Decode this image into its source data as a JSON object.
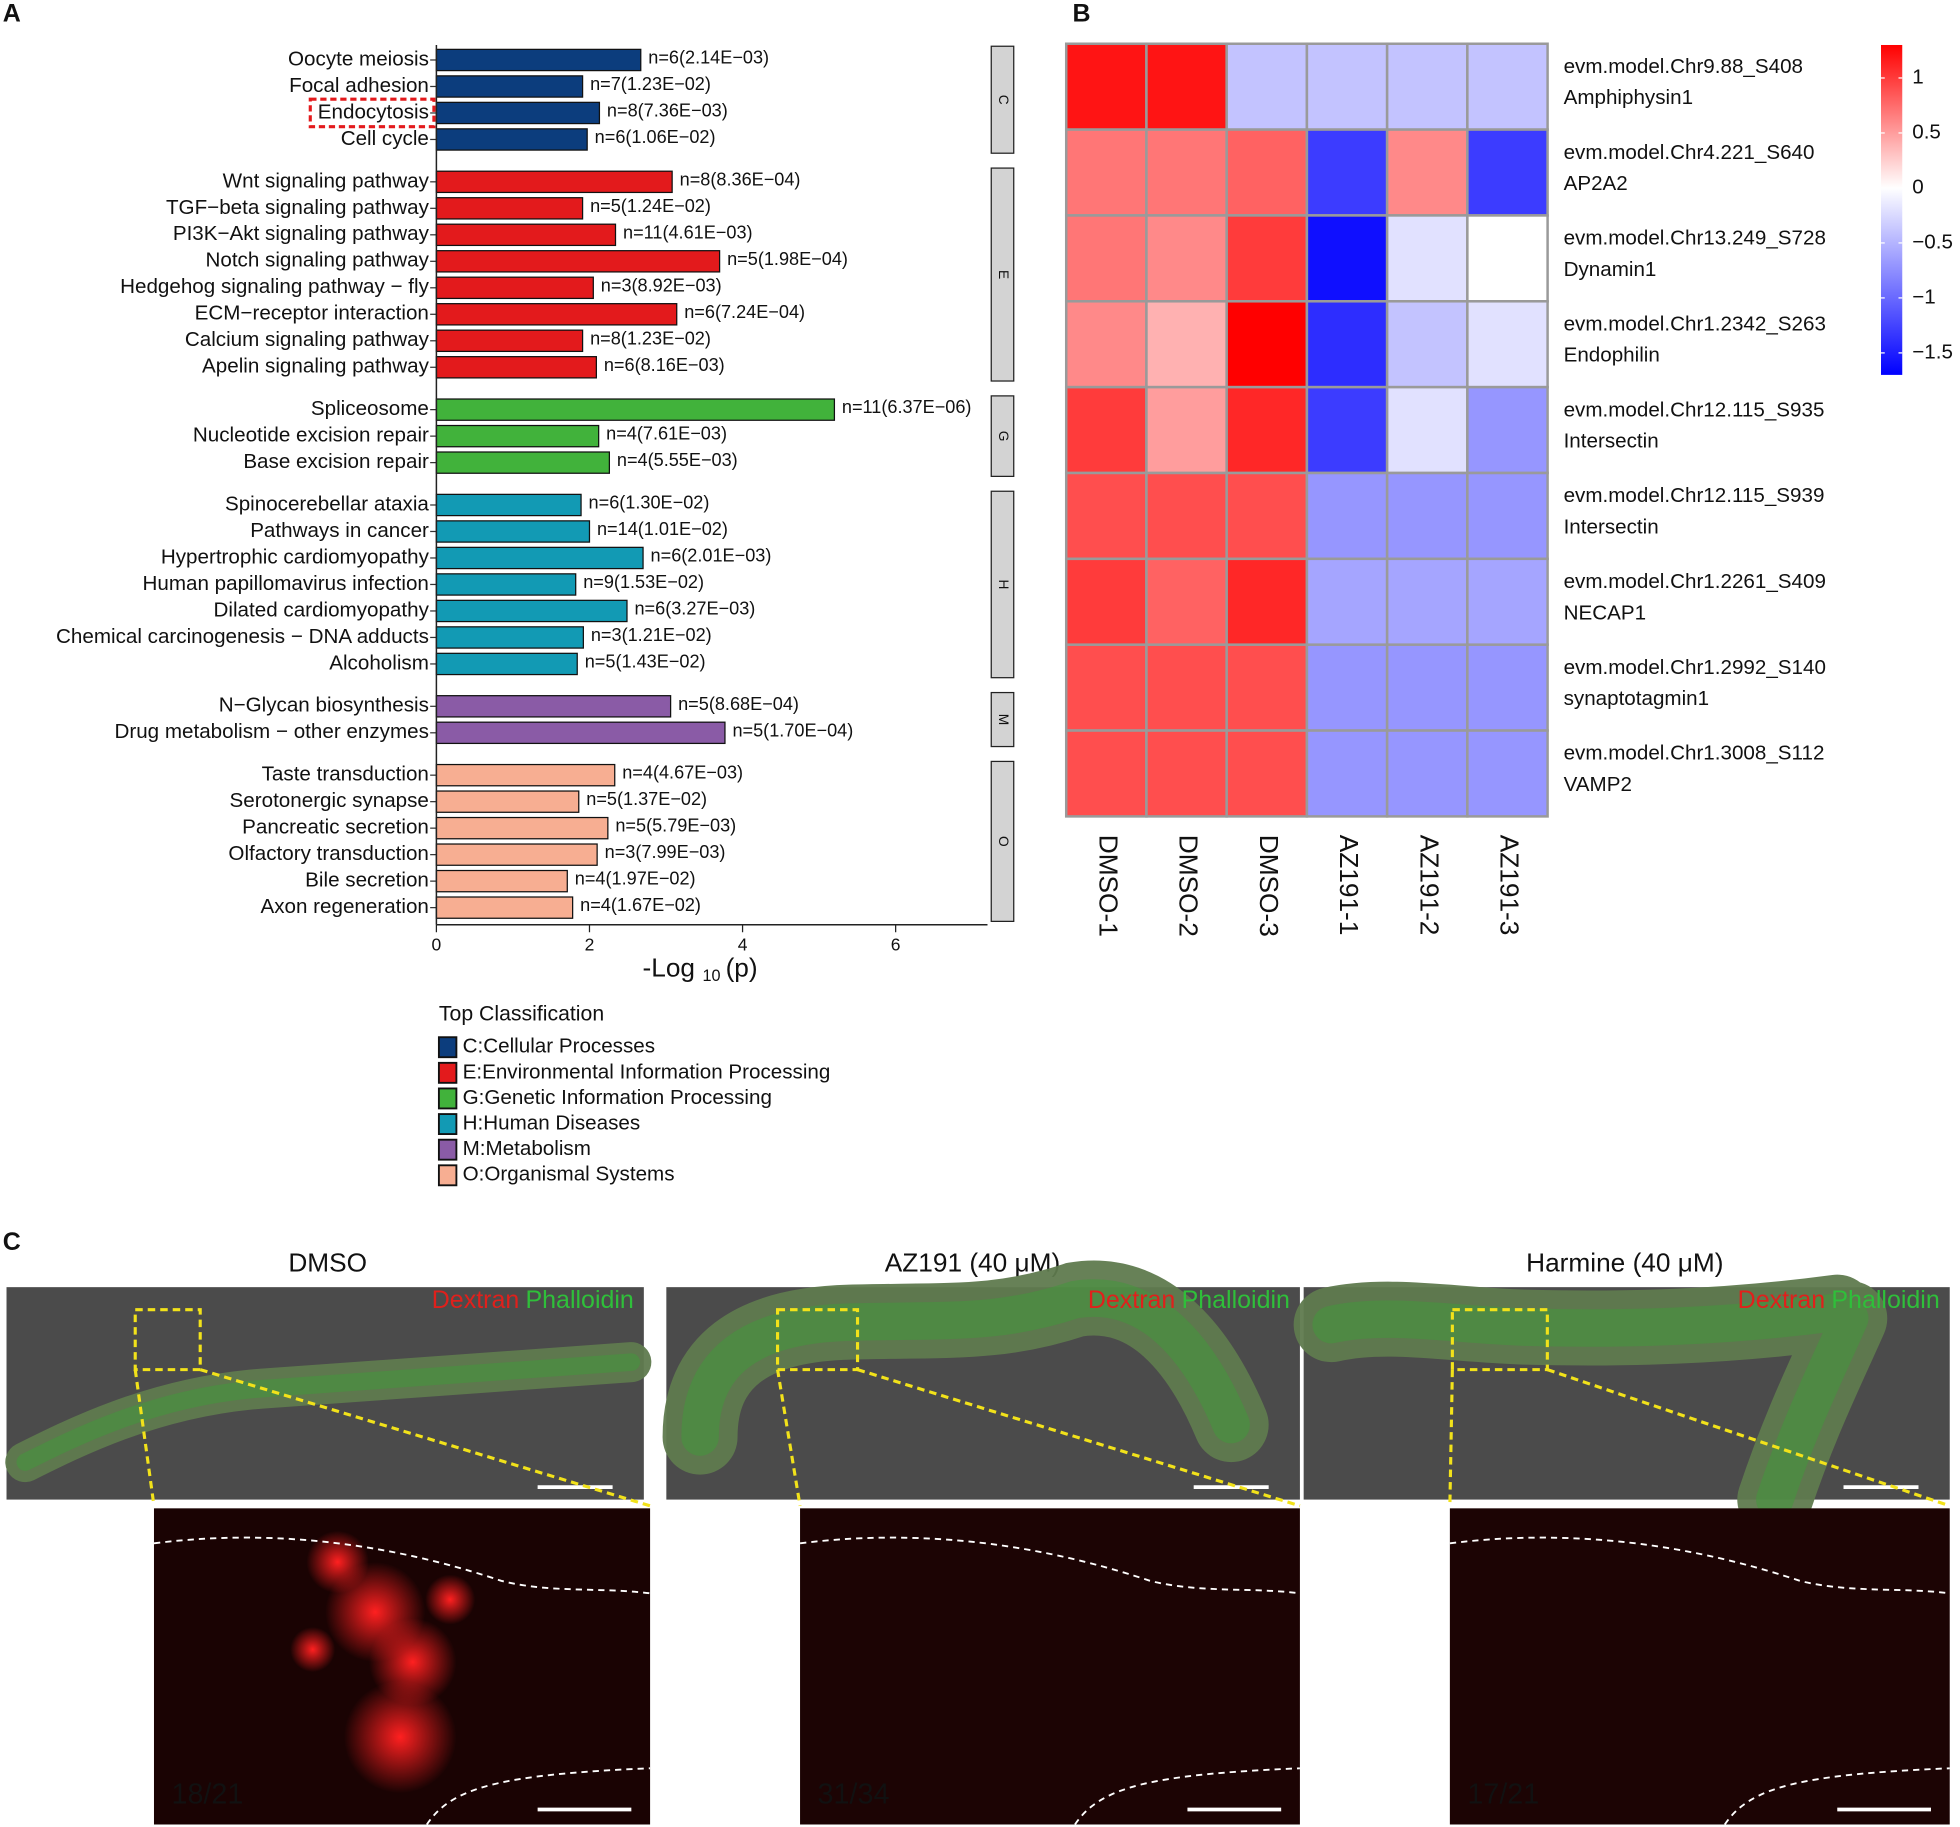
{
  "chart_data": [
    {
      "type": "bar",
      "orientation": "horizontal",
      "panel_label": "A",
      "xlabel": {
        "text": "-Log",
        "subscript": "10",
        "suffix": "(p)"
      },
      "xlim": [
        0,
        7.2
      ],
      "xticks": [
        0,
        2,
        4,
        6
      ],
      "legend_title": "Top Classification",
      "series": [
        {
          "name": "C:Cellular Processes",
          "strip": "C",
          "color": "#0c3d7d",
          "categories": [
            "Oocyte meiosis",
            "Focal adhesion",
            "Endocytosis",
            "Cell cycle"
          ],
          "values": [
            2.67,
            1.91,
            2.13,
            1.97
          ],
          "value_labels": [
            "n=6(2.14E−03)",
            "n=7(1.23E−02)",
            "n=8(7.36E−03)",
            "n=6(1.06E−02)"
          ]
        },
        {
          "name": "E:Environmental Information Processing",
          "strip": "E",
          "color": "#e31a1c",
          "categories": [
            "Wnt signaling pathway",
            "TGF−beta signaling pathway",
            "PI3K−Akt signaling pathway",
            "Notch signaling pathway",
            "Hedgehog signaling pathway − fly",
            "ECM−receptor interaction",
            "Calcium signaling pathway",
            "Apelin signaling pathway"
          ],
          "values": [
            3.08,
            1.91,
            2.34,
            3.7,
            2.05,
            3.14,
            1.91,
            2.09
          ],
          "value_labels": [
            "n=8(8.36E−04)",
            "n=5(1.24E−02)",
            "n=11(4.61E−03)",
            "n=5(1.98E−04)",
            "n=3(8.92E−03)",
            "n=6(7.24E−04)",
            "n=8(1.23E−02)",
            "n=6(8.16E−03)"
          ]
        },
        {
          "name": "G:Genetic Information Processing",
          "strip": "G",
          "color": "#41b23b",
          "categories": [
            "Spliceosome",
            "Nucleotide excision repair",
            "Base excision repair"
          ],
          "values": [
            5.2,
            2.12,
            2.26
          ],
          "value_labels": [
            "n=11(6.37E−06)",
            "n=4(7.61E−03)",
            "n=4(5.55E−03)"
          ]
        },
        {
          "name": "H:Human Diseases",
          "strip": "H",
          "color": "#129ab4",
          "categories": [
            "Spinocerebellar ataxia",
            "Pathways in cancer",
            "Hypertrophic cardiomyopathy",
            "Human papillomavirus infection",
            "Dilated cardiomyopathy",
            "Chemical carcinogenesis − DNA adducts",
            "Alcoholism"
          ],
          "values": [
            1.89,
            2.0,
            2.7,
            1.82,
            2.49,
            1.92,
            1.84
          ],
          "value_labels": [
            "n=6(1.30E−02)",
            "n=14(1.01E−02)",
            "n=6(2.01E−03)",
            "n=9(1.53E−02)",
            "n=6(3.27E−03)",
            "n=3(1.21E−02)",
            "n=5(1.43E−02)"
          ]
        },
        {
          "name": "M:Metabolism",
          "strip": "M",
          "color": "#8a5ba6",
          "categories": [
            "N−Glycan biosynthesis",
            "Drug metabolism − other enzymes"
          ],
          "values": [
            3.06,
            3.77
          ],
          "value_labels": [
            "n=5(8.68E−04)",
            "n=5(1.70E−04)"
          ]
        },
        {
          "name": "O:Organismal Systems",
          "strip": "O",
          "color": "#f7ae92",
          "categories": [
            "Taste transduction",
            "Serotonergic synapse",
            "Pancreatic secretion",
            "Olfactory transduction",
            "Bile secretion",
            "Axon regeneration"
          ],
          "values": [
            2.33,
            1.86,
            2.24,
            2.1,
            1.71,
            1.78
          ],
          "value_labels": [
            "n=4(4.67E−03)",
            "n=5(1.37E−02)",
            "n=5(5.79E−03)",
            "n=3(7.99E−03)",
            "n=4(1.97E−02)",
            "n=4(1.67E−02)"
          ]
        }
      ]
    },
    {
      "type": "heatmap",
      "panel_label": "B",
      "columns": [
        "DMSO-1",
        "DMSO-2",
        "DMSO-3",
        "AZ191-1",
        "AZ191-2",
        "AZ191-3"
      ],
      "rows": [
        {
          "id": "evm.model.Chr9.88_S408",
          "gene": "Amphiphysin1"
        },
        {
          "id": "evm.model.Chr4.221_S640",
          "gene": "AP2A2"
        },
        {
          "id": "evm.model.Chr13.249_S728",
          "gene": "Dynamin1"
        },
        {
          "id": "evm.model.Chr1.2342_S263",
          "gene": "Endophilin"
        },
        {
          "id": "evm.model.Chr12.115_S935",
          "gene": "Intersectin"
        },
        {
          "id": "evm.model.Chr12.115_S939",
          "gene": "Intersectin"
        },
        {
          "id": "evm.model.Chr1.2261_S409",
          "gene": "NECAP1"
        },
        {
          "id": "evm.model.Chr1.2992_S140",
          "gene": "synaptotagmin1"
        },
        {
          "id": "evm.model.Chr1.3008_S112",
          "gene": "VAMP2"
        }
      ],
      "values": [
        [
          1.2,
          1.2,
          -0.4,
          -0.4,
          -0.4,
          -0.4
        ],
        [
          0.7,
          0.7,
          0.8,
          -1.3,
          0.6,
          -1.3
        ],
        [
          0.7,
          0.6,
          1.0,
          -1.6,
          -0.2,
          0.0
        ],
        [
          0.6,
          0.4,
          1.3,
          -1.4,
          -0.4,
          -0.2
        ],
        [
          1.0,
          0.5,
          1.1,
          -1.3,
          -0.2,
          -0.7
        ],
        [
          0.9,
          0.9,
          0.9,
          -0.7,
          -0.7,
          -0.7
        ],
        [
          1.0,
          0.8,
          1.1,
          -0.6,
          -0.6,
          -0.6
        ],
        [
          0.9,
          0.9,
          0.9,
          -0.7,
          -0.7,
          -0.7
        ],
        [
          0.9,
          0.9,
          0.9,
          -0.7,
          -0.7,
          -0.7
        ]
      ],
      "zlim": [
        -1.7,
        1.3
      ],
      "zticks": [
        1,
        0.5,
        0,
        {
          "value": -0.5,
          "label": "−0.5"
        },
        {
          "value": -1,
          "label": "−1"
        },
        {
          "value": -1.5,
          "label": "−1.5"
        }
      ],
      "colors": {
        "low": "#0000ff",
        "mid": "#ffffff",
        "high": "#ff0000"
      }
    }
  ],
  "panel_c": {
    "label": "C",
    "panels": [
      {
        "title": "DMSO",
        "stain_red": "Dextran",
        "stain_green": "Phalloidin",
        "count": "18/21"
      },
      {
        "title": "AZ191 (40 μM)",
        "stain_red": "Dextran",
        "stain_green": "Phalloidin",
        "count": "31/34"
      },
      {
        "title": "Harmine (40 μM)",
        "stain_red": "Dextran",
        "stain_green": "Phalloidin",
        "count": "17/21"
      }
    ]
  }
}
